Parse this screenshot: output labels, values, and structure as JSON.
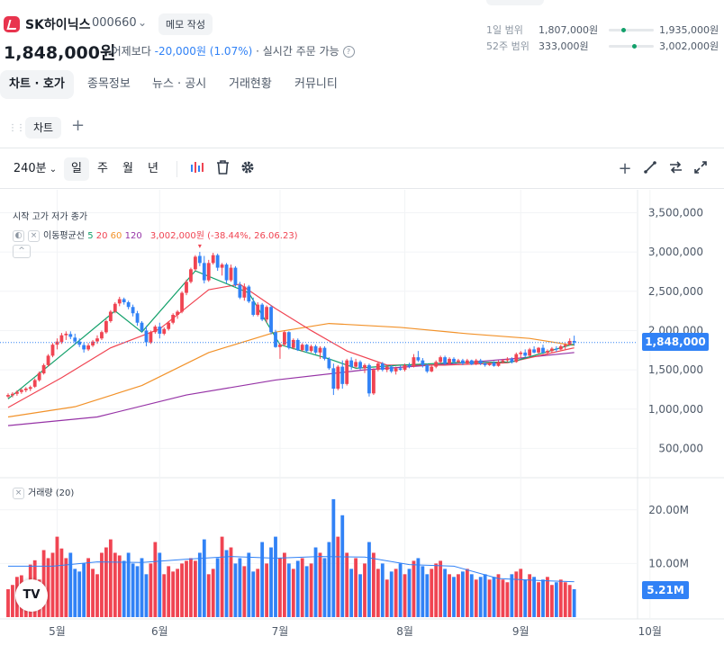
{
  "header": {
    "name": "SK하이닉스",
    "code": "000660",
    "memo_label": "메모 작성",
    "price": "1,848,000원",
    "prev_label": "· 어제보다",
    "change": "-20,000원 (1.07%)",
    "realtime_label": "· 실시간 주문 가능",
    "range_day": {
      "label": "1일 범위",
      "low": "1,807,000원",
      "high": "1,935,000원",
      "pos": 0.32
    },
    "range_52w": {
      "label": "52주 범위",
      "low": "333,000원",
      "high": "3,002,000원",
      "pos": 0.57
    }
  },
  "tabs": [
    "차트 · 호가",
    "종목정보",
    "뉴스 · 공시",
    "거래현황",
    "커뮤니티"
  ],
  "chart_tab": "차트",
  "toolbar": {
    "interval": "240분",
    "periods": [
      "일",
      "주",
      "월",
      "년"
    ],
    "selected": "일"
  },
  "colors": {
    "up": "#f04452",
    "down": "#3182f6",
    "ma5": "#12a06a",
    "ma20": "#f04452",
    "ma60": "#f2922a",
    "ma120": "#9633a6",
    "vol_ma": "#3182f6"
  },
  "legend": {
    "ohlc": "시작 고가 저가 종가",
    "ma_label": "이동평균선",
    "ma_periods": [
      "5",
      "20",
      "60",
      "120"
    ],
    "max_info": "3,002,000원 (-38.44%, 26.06.23)",
    "volume_label": "거래량 (20)"
  },
  "price_tag": "1,848,000",
  "volume_tag": "5.21M",
  "chart_data": {
    "type": "candlestick",
    "current_price": 1848000,
    "y_ticks": [
      "3,500,000",
      "3,000,000",
      "2,500,000",
      "2,000,000",
      "1,500,000",
      "1,000,000",
      "500,000"
    ],
    "y_tick_values": [
      3500000,
      3000000,
      2500000,
      2000000,
      1500000,
      1000000,
      500000
    ],
    "ylim": [
      150000,
      3700000
    ],
    "x_labels": [
      "5월",
      "6월",
      "7월",
      "8월",
      "9월",
      "10월"
    ],
    "x_label_index": [
      11,
      34,
      61,
      89,
      115,
      144
    ],
    "candles": [
      [
        1160000,
        1200000,
        1140000,
        1180000
      ],
      [
        1175000,
        1215000,
        1150000,
        1195000
      ],
      [
        1195000,
        1240000,
        1170000,
        1220000
      ],
      [
        1218000,
        1260000,
        1195000,
        1245000
      ],
      [
        1240000,
        1280000,
        1215000,
        1262000
      ],
      [
        1258000,
        1300000,
        1230000,
        1280000
      ],
      [
        1285000,
        1390000,
        1270000,
        1370000
      ],
      [
        1368000,
        1480000,
        1350000,
        1460000
      ],
      [
        1455000,
        1580000,
        1440000,
        1560000
      ],
      [
        1560000,
        1700000,
        1540000,
        1680000
      ],
      [
        1680000,
        1840000,
        1660000,
        1820000
      ],
      [
        1820000,
        1900000,
        1760000,
        1860000
      ],
      [
        1855000,
        1970000,
        1830000,
        1940000
      ],
      [
        1940000,
        1990000,
        1880000,
        1960000
      ],
      [
        1955000,
        1990000,
        1890000,
        1920000
      ],
      [
        1910000,
        1960000,
        1820000,
        1860000
      ],
      [
        1860000,
        1900000,
        1790000,
        1820000
      ],
      [
        1815000,
        1850000,
        1720000,
        1760000
      ],
      [
        1760000,
        1840000,
        1740000,
        1810000
      ],
      [
        1810000,
        1880000,
        1790000,
        1860000
      ],
      [
        1862000,
        1940000,
        1830000,
        1900000
      ],
      [
        1900000,
        2000000,
        1880000,
        1980000
      ],
      [
        1978000,
        2140000,
        1960000,
        2120000
      ],
      [
        2120000,
        2260000,
        2100000,
        2240000
      ],
      [
        2240000,
        2360000,
        2220000,
        2340000
      ],
      [
        2345000,
        2430000,
        2310000,
        2400000
      ],
      [
        2400000,
        2420000,
        2330000,
        2360000
      ],
      [
        2360000,
        2380000,
        2270000,
        2300000
      ],
      [
        2300000,
        2330000,
        2180000,
        2220000
      ],
      [
        2220000,
        2250000,
        2060000,
        2100000
      ],
      [
        2100000,
        2120000,
        1980000,
        2000000
      ],
      [
        2000000,
        2060000,
        1800000,
        1850000
      ],
      [
        1850000,
        2000000,
        1830000,
        1980000
      ],
      [
        1980000,
        2070000,
        1960000,
        2050000
      ],
      [
        2050000,
        2100000,
        1900000,
        1960000
      ],
      [
        1960000,
        2040000,
        1940000,
        2020000
      ],
      [
        2020000,
        2120000,
        2000000,
        2100000
      ],
      [
        2100000,
        2220000,
        2080000,
        2200000
      ],
      [
        2200000,
        2260000,
        2150000,
        2240000
      ],
      [
        2240000,
        2500000,
        2220000,
        2480000
      ],
      [
        2480000,
        2650000,
        2450000,
        2620000
      ],
      [
        2620000,
        2800000,
        2600000,
        2780000
      ],
      [
        2780000,
        2960000,
        2760000,
        2940000
      ],
      [
        2950000,
        3002000,
        2820000,
        2860000
      ],
      [
        2860000,
        2950000,
        2600000,
        2640000
      ],
      [
        2640000,
        2900000,
        2620000,
        2860000
      ],
      [
        2860000,
        2990000,
        2840000,
        2960000
      ],
      [
        2960000,
        2980000,
        2760000,
        2800000
      ],
      [
        2800000,
        2860000,
        2700000,
        2840000
      ],
      [
        2840000,
        2860000,
        2600000,
        2640000
      ],
      [
        2640000,
        2840000,
        2620000,
        2800000
      ],
      [
        2800000,
        2820000,
        2560000,
        2580000
      ],
      [
        2580000,
        2620000,
        2400000,
        2420000
      ],
      [
        2420000,
        2600000,
        2380000,
        2560000
      ],
      [
        2560000,
        2580000,
        2350000,
        2370000
      ],
      [
        2370000,
        2420000,
        2180000,
        2200000
      ],
      [
        2200000,
        2360000,
        2180000,
        2330000
      ],
      [
        2330000,
        2350000,
        2120000,
        2140000
      ],
      [
        2140000,
        2320000,
        2100000,
        2300000
      ],
      [
        2300000,
        2320000,
        1950000,
        1980000
      ],
      [
        1980000,
        2010000,
        1780000,
        1790000
      ],
      [
        1790000,
        1840000,
        1640000,
        1820000
      ],
      [
        1820000,
        2000000,
        1800000,
        1980000
      ],
      [
        1980000,
        1990000,
        1760000,
        1780000
      ],
      [
        1780000,
        1900000,
        1760000,
        1880000
      ],
      [
        1880000,
        1900000,
        1740000,
        1750000
      ],
      [
        1750000,
        1840000,
        1730000,
        1820000
      ],
      [
        1820000,
        1830000,
        1720000,
        1740000
      ],
      [
        1740000,
        1820000,
        1720000,
        1800000
      ],
      [
        1800000,
        1820000,
        1700000,
        1720000
      ],
      [
        1720000,
        1800000,
        1640000,
        1780000
      ],
      [
        1780000,
        1800000,
        1620000,
        1640000
      ],
      [
        1640000,
        1660000,
        1500000,
        1520000
      ],
      [
        1520000,
        1580000,
        1180000,
        1260000
      ],
      [
        1260000,
        1560000,
        1240000,
        1540000
      ],
      [
        1540000,
        1620000,
        1260000,
        1320000
      ],
      [
        1320000,
        1640000,
        1300000,
        1620000
      ],
      [
        1620000,
        1660000,
        1500000,
        1540000
      ],
      [
        1540000,
        1640000,
        1520000,
        1600000
      ],
      [
        1600000,
        1620000,
        1500000,
        1520000
      ],
      [
        1520000,
        1580000,
        1460000,
        1560000
      ],
      [
        1560000,
        1580000,
        1160000,
        1200000
      ],
      [
        1200000,
        1520000,
        1180000,
        1500000
      ],
      [
        1500000,
        1600000,
        1480000,
        1580000
      ],
      [
        1580000,
        1600000,
        1480000,
        1500000
      ],
      [
        1500000,
        1560000,
        1470000,
        1540000
      ],
      [
        1540000,
        1560000,
        1460000,
        1480000
      ],
      [
        1480000,
        1540000,
        1440000,
        1520000
      ],
      [
        1520000,
        1560000,
        1490000,
        1500000
      ],
      [
        1500000,
        1580000,
        1480000,
        1560000
      ],
      [
        1560000,
        1590000,
        1520000,
        1540000
      ],
      [
        1540000,
        1700000,
        1530000,
        1660000
      ],
      [
        1660000,
        1740000,
        1600000,
        1620000
      ],
      [
        1620000,
        1650000,
        1530000,
        1560000
      ],
      [
        1560000,
        1580000,
        1460000,
        1480000
      ],
      [
        1480000,
        1560000,
        1470000,
        1540000
      ],
      [
        1540000,
        1620000,
        1520000,
        1600000
      ],
      [
        1600000,
        1680000,
        1580000,
        1660000
      ],
      [
        1660000,
        1680000,
        1560000,
        1580000
      ],
      [
        1580000,
        1660000,
        1570000,
        1640000
      ],
      [
        1640000,
        1660000,
        1580000,
        1600000
      ],
      [
        1600000,
        1640000,
        1580000,
        1620000
      ],
      [
        1620000,
        1640000,
        1560000,
        1580000
      ],
      [
        1580000,
        1640000,
        1570000,
        1620000
      ],
      [
        1620000,
        1630000,
        1560000,
        1570000
      ],
      [
        1570000,
        1640000,
        1560000,
        1620000
      ],
      [
        1620000,
        1640000,
        1560000,
        1580000
      ],
      [
        1580000,
        1600000,
        1540000,
        1560000
      ],
      [
        1560000,
        1600000,
        1550000,
        1590000
      ],
      [
        1590000,
        1610000,
        1540000,
        1550000
      ],
      [
        1550000,
        1620000,
        1540000,
        1600000
      ],
      [
        1600000,
        1640000,
        1580000,
        1620000
      ],
      [
        1620000,
        1660000,
        1600000,
        1640000
      ],
      [
        1640000,
        1660000,
        1580000,
        1600000
      ],
      [
        1600000,
        1720000,
        1590000,
        1700000
      ],
      [
        1700000,
        1740000,
        1650000,
        1720000
      ],
      [
        1720000,
        1760000,
        1660000,
        1680000
      ],
      [
        1680000,
        1780000,
        1670000,
        1760000
      ],
      [
        1760000,
        1800000,
        1710000,
        1720000
      ],
      [
        1720000,
        1790000,
        1700000,
        1780000
      ],
      [
        1780000,
        1820000,
        1700000,
        1720000
      ],
      [
        1720000,
        1760000,
        1680000,
        1740000
      ],
      [
        1740000,
        1790000,
        1720000,
        1770000
      ],
      [
        1770000,
        1800000,
        1730000,
        1760000
      ],
      [
        1760000,
        1820000,
        1750000,
        1800000
      ],
      [
        1800000,
        1840000,
        1760000,
        1820000
      ],
      [
        1820000,
        1900000,
        1810000,
        1868000
      ],
      [
        1868000,
        1935000,
        1807000,
        1848000
      ]
    ],
    "ma5": [
      [
        0,
        1130000
      ],
      [
        14,
        1780000
      ],
      [
        24,
        2250000
      ],
      [
        30,
        1980000
      ],
      [
        42,
        2760000
      ],
      [
        54,
        2480000
      ],
      [
        61,
        1820000
      ],
      [
        72,
        1640000
      ],
      [
        78,
        1520000
      ],
      [
        88,
        1560000
      ],
      [
        100,
        1590000
      ],
      [
        113,
        1600000
      ],
      [
        127,
        1830000
      ]
    ],
    "ma20": [
      [
        0,
        1020000
      ],
      [
        12,
        1400000
      ],
      [
        23,
        1780000
      ],
      [
        34,
        2020000
      ],
      [
        45,
        2520000
      ],
      [
        52,
        2590000
      ],
      [
        60,
        2280000
      ],
      [
        68,
        2000000
      ],
      [
        76,
        1740000
      ],
      [
        85,
        1560000
      ],
      [
        98,
        1560000
      ],
      [
        112,
        1590000
      ],
      [
        127,
        1780000
      ]
    ],
    "ma60": [
      [
        0,
        900000
      ],
      [
        15,
        1030000
      ],
      [
        30,
        1300000
      ],
      [
        45,
        1720000
      ],
      [
        60,
        1980000
      ],
      [
        72,
        2090000
      ],
      [
        88,
        2040000
      ],
      [
        103,
        1960000
      ],
      [
        117,
        1900000
      ],
      [
        127,
        1810000
      ]
    ],
    "ma120": [
      [
        0,
        790000
      ],
      [
        20,
        900000
      ],
      [
        40,
        1180000
      ],
      [
        60,
        1370000
      ],
      [
        80,
        1500000
      ],
      [
        100,
        1580000
      ],
      [
        115,
        1650000
      ],
      [
        127,
        1720000
      ]
    ],
    "volume_ylim": [
      0,
      25
    ],
    "volume_ticks": [
      "20.00M",
      "10.00M"
    ],
    "volume_tick_values": [
      20,
      10
    ],
    "volume": [
      5.2,
      6.0,
      7.5,
      7.8,
      6.2,
      9.8,
      10.6,
      7.0,
      12.5,
      11.0,
      12.0,
      15.0,
      12.8,
      11.0,
      12.0,
      9.0,
      8.5,
      10.0,
      11.0,
      9.0,
      8.0,
      12.0,
      13.0,
      14.5,
      12.0,
      11.5,
      10.5,
      12.0,
      10.0,
      9.5,
      11.0,
      8.0,
      10.0,
      14.0,
      12.0,
      8.0,
      9.5,
      8.5,
      9.0,
      10.0,
      10.5,
      11.0,
      10.5,
      12.0,
      14.5,
      8.0,
      9.0,
      11.0,
      15.0,
      12.5,
      13.0,
      10.0,
      11.0,
      9.5,
      12.0,
      8.5,
      9.0,
      14.0,
      10.0,
      13.0,
      15.0,
      11.0,
      12.0,
      10.0,
      9.0,
      10.5,
      11.0,
      9.5,
      10.0,
      13.0,
      12.0,
      11.0,
      14.0,
      22.0,
      15.0,
      19.0,
      12.0,
      9.0,
      11.0,
      8.0,
      10.0,
      14.0,
      12.0,
      9.0,
      10.0,
      7.0,
      8.5,
      9.0,
      10.0,
      8.0,
      9.0,
      10.5,
      11.0,
      9.5,
      8.0,
      9.0,
      10.0,
      10.5,
      9.0,
      8.0,
      7.5,
      8.0,
      8.5,
      9.0,
      8.0,
      7.0,
      7.5,
      8.0,
      7.0,
      7.5,
      8.0,
      7.0,
      6.5,
      8.0,
      8.5,
      9.0,
      7.0,
      8.0,
      7.5,
      6.5,
      7.0,
      7.5,
      6.0,
      6.5,
      7.0,
      6.5,
      6.0,
      5.21
    ],
    "volume_ma": [
      [
        0,
        9.5
      ],
      [
        10,
        9.5
      ],
      [
        20,
        10.3
      ],
      [
        30,
        10.2
      ],
      [
        40,
        10.8
      ],
      [
        50,
        11.3
      ],
      [
        60,
        11.0
      ],
      [
        70,
        11.3
      ],
      [
        80,
        11.2
      ],
      [
        90,
        9.8
      ],
      [
        100,
        9.5
      ],
      [
        110,
        7.2
      ],
      [
        120,
        6.8
      ],
      [
        127,
        6.6
      ]
    ]
  }
}
